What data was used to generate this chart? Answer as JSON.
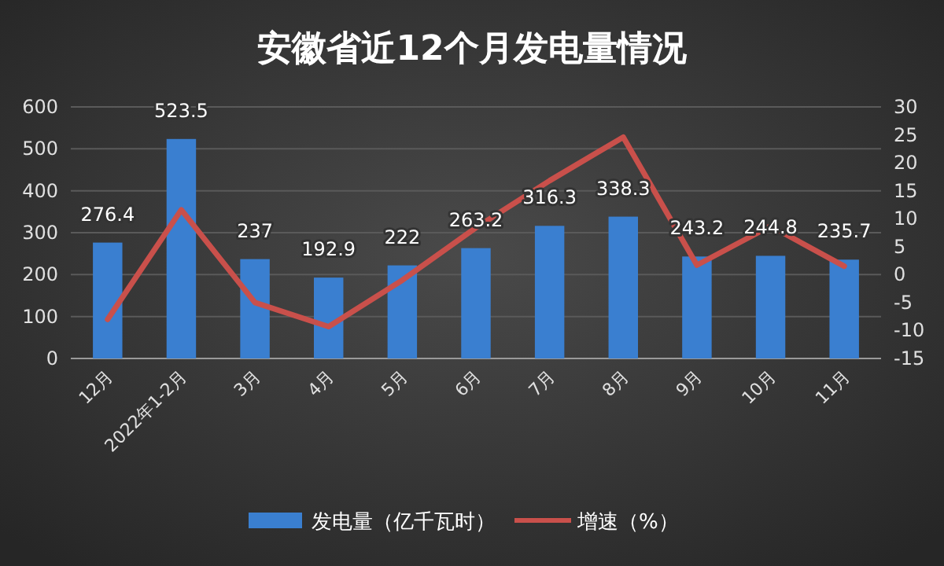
{
  "chart_data": {
    "type": "bar",
    "title": "安徽省近12个月发电量情况",
    "categories": [
      "12月",
      "2022年1-2月",
      "3月",
      "4月",
      "5月",
      "6月",
      "7月",
      "8月",
      "9月",
      "10月",
      "11月"
    ],
    "series": [
      {
        "name": "发电量（亿千瓦时）",
        "color": "#3a7fd0",
        "values": [
          276.4,
          523.5,
          237,
          192.9,
          222,
          263.2,
          316.3,
          338.3,
          243.2,
          244.8,
          235.7
        ],
        "value_labels": [
          "276.4",
          "523.5",
          "237",
          "192.9",
          "222",
          "263.2",
          "316.3",
          "338.3",
          "243.2",
          "244.8",
          "235.7"
        ]
      },
      {
        "name": "增速（%）",
        "type": "line",
        "axis": "y2",
        "color": "#c9504b",
        "values": [
          -8.0,
          11.6,
          -5.0,
          -9.3,
          -1.0,
          8.4,
          16.8,
          24.6,
          1.7,
          8.7,
          1.5
        ]
      }
    ],
    "ylim": [
      0,
      600
    ],
    "yticks": [
      0,
      100,
      200,
      300,
      400,
      500,
      600
    ],
    "y2lim": [
      -15,
      30
    ],
    "y2ticks": [
      -15,
      -10,
      -5,
      0,
      5,
      10,
      15,
      20,
      25,
      30
    ],
    "grid": "y",
    "legend": "bottom"
  }
}
